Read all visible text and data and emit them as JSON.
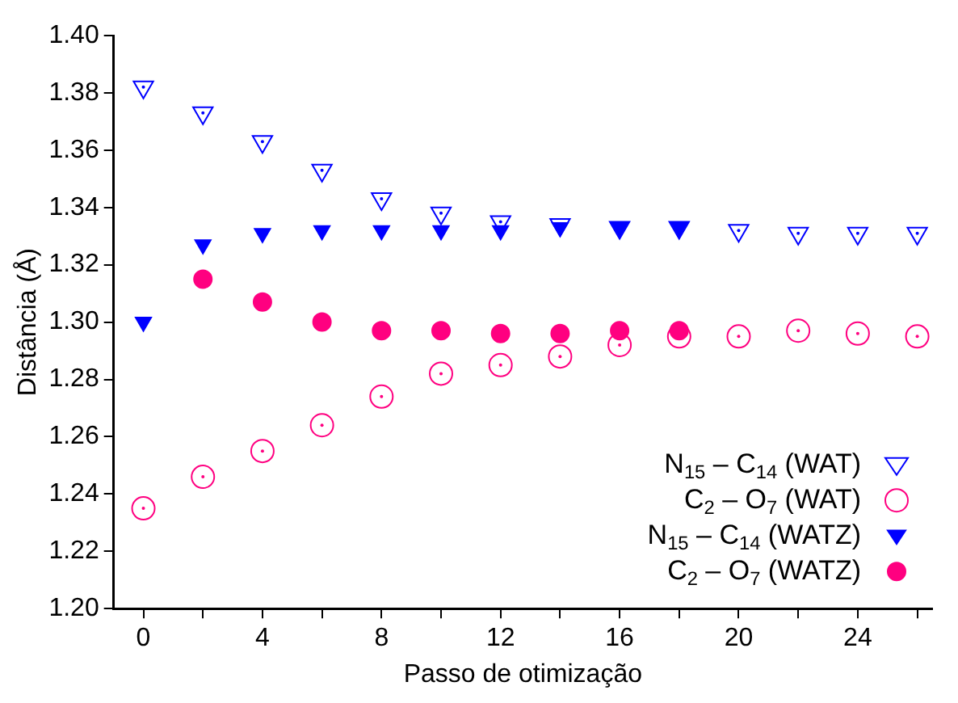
{
  "chart_data": {
    "type": "scatter",
    "xlabel": "Passo de otimização",
    "ylabel": "Distância (Å)",
    "xlim": [
      -1,
      26.5
    ],
    "ylim": [
      1.2,
      1.4
    ],
    "xticks": [
      0,
      {
        "value": 2,
        "label": null
      },
      4,
      {
        "value": 6,
        "label": null
      },
      8,
      {
        "value": 10,
        "label": null
      },
      12,
      {
        "value": 14,
        "label": null
      },
      16,
      {
        "value": 18,
        "label": null
      },
      20,
      {
        "value": 22,
        "label": null
      },
      24,
      {
        "value": 26,
        "label": null
      }
    ],
    "yticks": [
      {
        "value": 1.2,
        "label": "1.20"
      },
      {
        "value": 1.22,
        "label": "1.22"
      },
      {
        "value": 1.24,
        "label": "1.24"
      },
      {
        "value": 1.26,
        "label": "1.26"
      },
      {
        "value": 1.28,
        "label": "1.28"
      },
      {
        "value": 1.3,
        "label": "1.30"
      },
      {
        "value": 1.32,
        "label": "1.32"
      },
      {
        "value": 1.34,
        "label": "1.34"
      },
      {
        "value": 1.36,
        "label": "1.36"
      },
      {
        "value": 1.38,
        "label": "1.38"
      },
      {
        "value": 1.4,
        "label": "1.40"
      }
    ],
    "grid": false,
    "legend": "bottom right",
    "series": [
      {
        "name": "N$_{15}$ – C$_{14}$ (WAT)",
        "color": "#0000ff",
        "marker": "triangle-open",
        "x": [
          0,
          2,
          4,
          6,
          8,
          10,
          12,
          14,
          16,
          18,
          20,
          22,
          24,
          26
        ],
        "values": [
          1.382,
          1.373,
          1.363,
          1.353,
          1.343,
          1.338,
          1.335,
          1.334,
          1.333,
          1.333,
          1.332,
          1.331,
          1.331,
          1.331
        ]
      },
      {
        "name": "C$_{2}$ – O$_{7}$ (WAT)",
        "color": "#ff0080",
        "marker": "circle-open",
        "x": [
          0,
          2,
          4,
          6,
          8,
          10,
          12,
          14,
          16,
          18,
          20,
          22,
          24,
          26
        ],
        "values": [
          1.235,
          1.246,
          1.255,
          1.264,
          1.274,
          1.282,
          1.285,
          1.288,
          1.292,
          1.295,
          1.295,
          1.297,
          1.296,
          1.295
        ]
      },
      {
        "name": "N$_{15}$ – C$_{14}$ (WATZ)",
        "color": "#0000ff",
        "marker": "triangle",
        "x": [
          0,
          2,
          4,
          6,
          8,
          10,
          12,
          14,
          16,
          18
        ],
        "values": [
          1.3,
          1.327,
          1.331,
          1.332,
          1.332,
          1.332,
          1.332,
          1.333,
          1.333,
          1.333
        ]
      },
      {
        "name": "C$_{2}$ – O$_{7}$ (WATZ)",
        "color": "#ff0080",
        "marker": "circle",
        "x": [
          2,
          4,
          6,
          8,
          10,
          12,
          14,
          16,
          18
        ],
        "values": [
          1.315,
          1.307,
          1.3,
          1.297,
          1.297,
          1.296,
          1.296,
          1.297,
          1.297
        ]
      }
    ]
  }
}
